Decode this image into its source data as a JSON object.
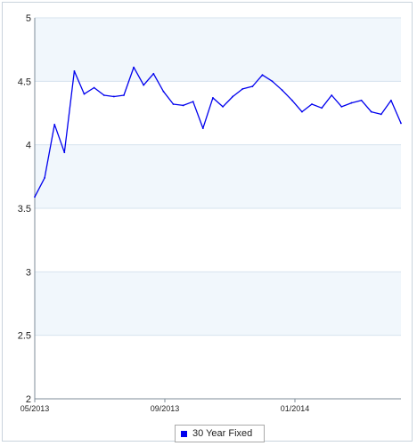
{
  "chart_data": {
    "type": "line",
    "x_tick_labels": [
      "05/2013",
      "09/2013",
      "01/2014"
    ],
    "y_ticks": [
      2,
      2.5,
      3,
      3.5,
      4,
      4.5,
      5
    ],
    "ylim": [
      2,
      5
    ],
    "grid": true,
    "legend_position": "bottom-center",
    "series": [
      {
        "name": "30 Year Fixed",
        "color": "#0000ee",
        "values": [
          3.59,
          3.74,
          4.16,
          3.94,
          4.58,
          4.4,
          4.45,
          4.39,
          4.38,
          4.39,
          4.61,
          4.47,
          4.56,
          4.42,
          4.32,
          4.31,
          4.34,
          4.13,
          4.37,
          4.3,
          4.38,
          4.44,
          4.46,
          4.55,
          4.5,
          4.43,
          4.35,
          4.26,
          4.32,
          4.29,
          4.39,
          4.3,
          4.33,
          4.35,
          4.26,
          4.24,
          4.35,
          4.17
        ]
      }
    ]
  }
}
